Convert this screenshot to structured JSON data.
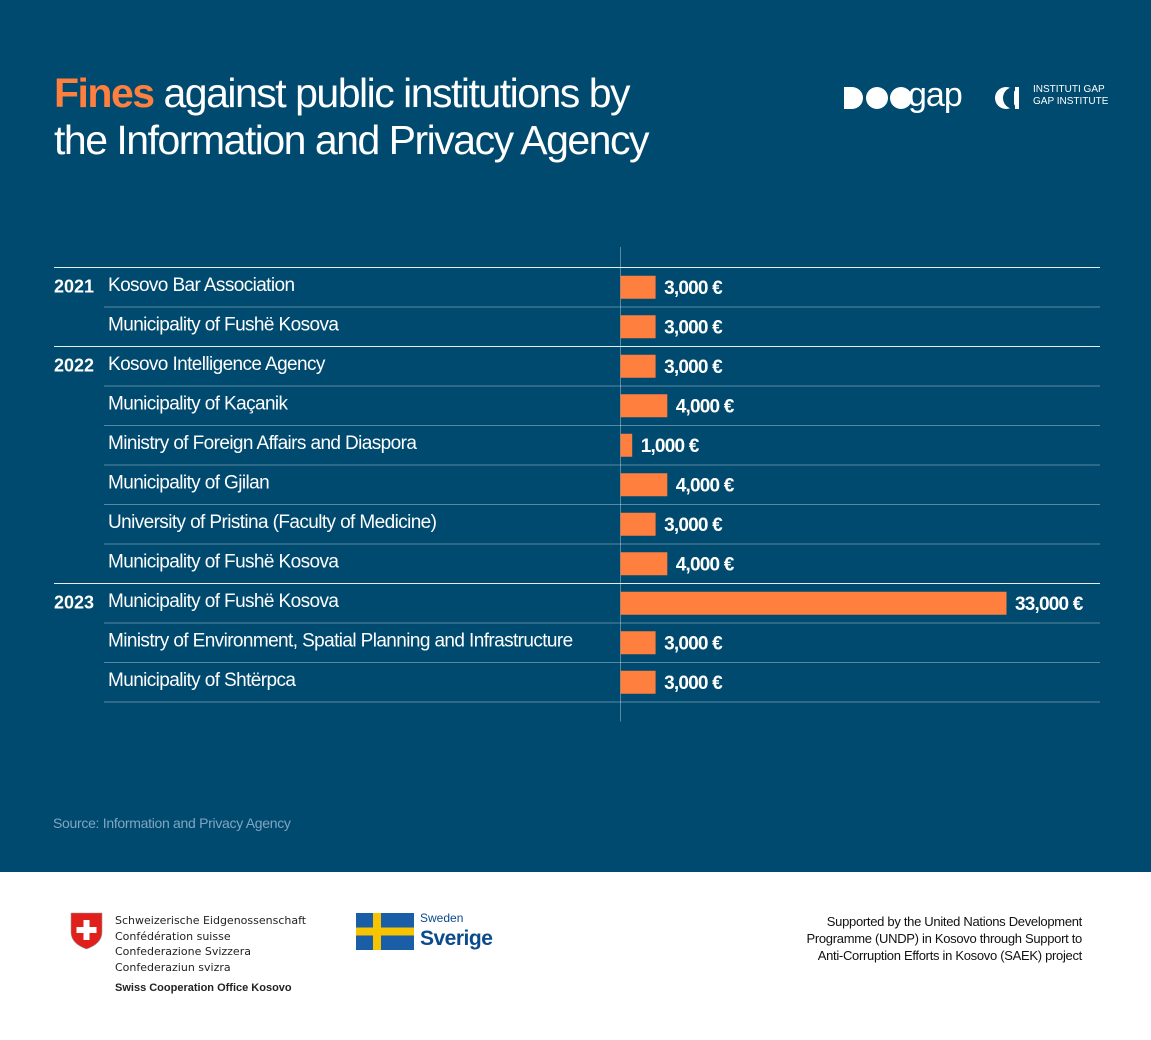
{
  "title": {
    "accent": "Fines",
    "line1_rest": " against public institutions by",
    "line2": "the Information and Privacy Agency"
  },
  "logo": {
    "wordmark": "gap",
    "line1": "INSTITUTI GAP",
    "line2": "GAP INSTITUTE"
  },
  "colors": {
    "background": "#004a6f",
    "bar": "#ff7f3f",
    "rule": "#ffffff"
  },
  "chart_data": {
    "type": "bar",
    "orientation": "horizontal",
    "title": "Fines against public institutions by the Information and Privacy Agency",
    "unit": "€",
    "xlim": [
      0,
      33000
    ],
    "grid": false,
    "groups": [
      {
        "year": "2021",
        "rows": [
          {
            "label": "Kosovo Bar Association",
            "value": 3000,
            "value_label": "3,000 €"
          },
          {
            "label": "Municipality of Fushë Kosova",
            "value": 3000,
            "value_label": "3,000 €"
          }
        ]
      },
      {
        "year": "2022",
        "rows": [
          {
            "label": "Kosovo Intelligence Agency",
            "value": 3000,
            "value_label": "3,000 €"
          },
          {
            "label": "Municipality of Kaçanik",
            "value": 4000,
            "value_label": "4,000 €"
          },
          {
            "label": "Ministry of Foreign Affairs and Diaspora",
            "value": 1000,
            "value_label": "1,000 €"
          },
          {
            "label": "Municipality of Gjilan",
            "value": 4000,
            "value_label": "4,000 €"
          },
          {
            "label": "University of Pristina (Faculty of Medicine)",
            "value": 3000,
            "value_label": "3,000 €"
          },
          {
            "label": "Municipality of Fushë Kosova",
            "value": 4000,
            "value_label": "4,000 €"
          }
        ]
      },
      {
        "year": "2023",
        "rows": [
          {
            "label": "Municipality of Fushë Kosova",
            "value": 33000,
            "value_label": "33,000 €"
          },
          {
            "label": "Ministry of Environment, Spatial Planning and Infrastructure",
            "value": 3000,
            "value_label": "3,000 €"
          },
          {
            "label": "Municipality of Shtërpca",
            "value": 3000,
            "value_label": "3,000 €"
          }
        ]
      }
    ]
  },
  "source": "Source: Information and Privacy Agency",
  "footer": {
    "swiss_lines": [
      "Schweizerische Eidgenossenschaft",
      "Confédération suisse",
      "Confederazione Svizzera",
      "Confederaziun svizra"
    ],
    "swiss_office": "Swiss Cooperation Office Kosovo",
    "sweden": "Sweden",
    "sverige": "Sverige",
    "support_lines": [
      "Supported by the United Nations Development",
      "Programme (UNDP) in Kosovo through Support to",
      "Anti-Corruption Efforts in Kosovo (SAEK) project"
    ]
  }
}
